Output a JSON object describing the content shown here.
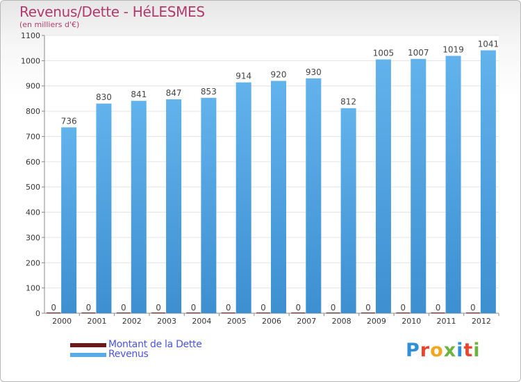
{
  "chart_data": {
    "type": "bar",
    "title": "Revenus/Dette - HéLESMES",
    "subtitle": "(en milliers d'€)",
    "categories": [
      "2000",
      "2001",
      "2002",
      "2003",
      "2004",
      "2005",
      "2006",
      "2007",
      "2008",
      "2009",
      "2010",
      "2011",
      "2012"
    ],
    "series": [
      {
        "name": "Montant de la Dette",
        "color": "#6b1a1a",
        "values": [
          0,
          0,
          0,
          0,
          0,
          0,
          0,
          0,
          0,
          0,
          0,
          0,
          0
        ]
      },
      {
        "name": "Revenus",
        "color": "#5aaae6",
        "values": [
          736,
          830,
          841,
          847,
          853,
          914,
          920,
          930,
          812,
          1005,
          1007,
          1019,
          1041
        ]
      }
    ],
    "ylim": [
      0,
      1100
    ],
    "yticks": [
      0,
      100,
      200,
      300,
      400,
      500,
      600,
      700,
      800,
      900,
      1000,
      1100
    ],
    "grid": true,
    "legend_position": "bottom-left"
  },
  "brand": {
    "logo_text": "Proxiti",
    "logo_colors": [
      "#2f8fd8",
      "#e8452c",
      "#f2a61f",
      "#6cb33f",
      "#2f8fd8",
      "#e8452c",
      "#6cb33f"
    ]
  }
}
